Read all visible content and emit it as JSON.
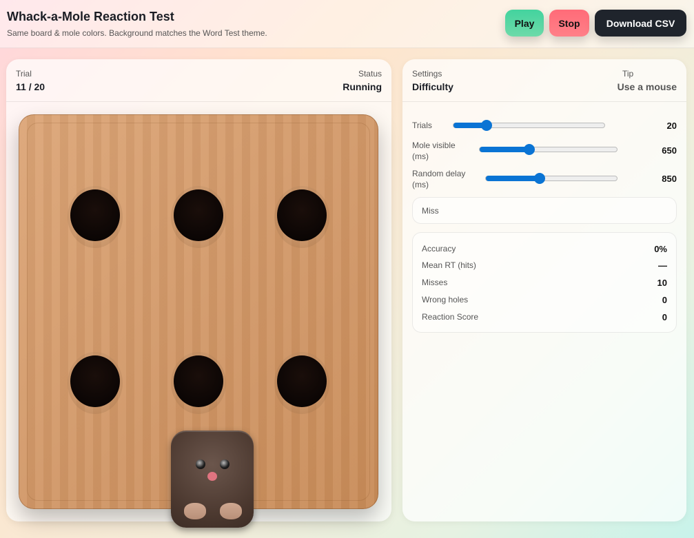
{
  "header": {
    "title": "Whack-a-Mole Reaction Test",
    "subtitle": "Same board & mole colors. Background matches the Word Test theme.",
    "play": "Play",
    "stop": "Stop",
    "download": "Download CSV"
  },
  "game": {
    "trial_label": "Trial",
    "trial_value": "11 / 20",
    "status_label": "Status",
    "status_value": "Running",
    "holes": 6,
    "active_hole": 5
  },
  "settings": {
    "label": "Settings",
    "value": "Difficulty",
    "tip_label": "Tip",
    "tip_value": "Use a mouse",
    "sliders": [
      {
        "label": "Trials",
        "value": "20",
        "fill": 0.22
      },
      {
        "label": "Mole visible (ms)",
        "value": "650",
        "fill": 0.36
      },
      {
        "label": "Random delay (ms)",
        "value": "850",
        "fill": 0.41
      }
    ],
    "feedback": "Miss",
    "stats": [
      {
        "label": "Accuracy",
        "value": "0%"
      },
      {
        "label": "Mean RT (hits)",
        "value": "—"
      },
      {
        "label": "Misses",
        "value": "10"
      },
      {
        "label": "Wrong holes",
        "value": "0"
      },
      {
        "label": "Reaction Score",
        "value": "0"
      }
    ]
  },
  "colors": {
    "accent": "#0a74d4",
    "play": "#43d39e",
    "stop": "#ff6b78",
    "download": "#1f242c",
    "board": "#d39c6b",
    "mole": "#4a372e"
  }
}
